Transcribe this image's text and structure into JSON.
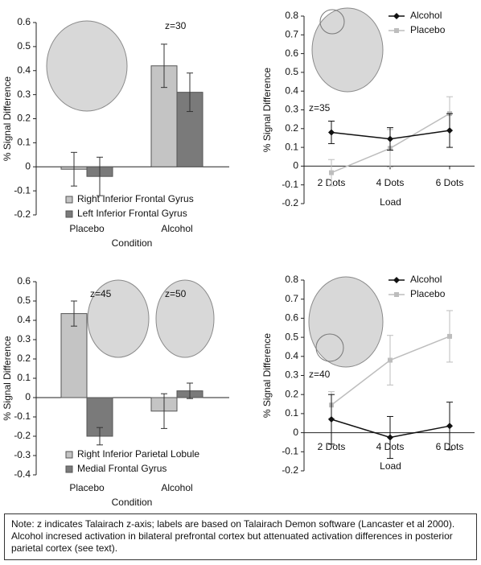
{
  "chart_data": [
    {
      "type": "bar",
      "ylabel": "% Signal Difference",
      "xlabel": "Condition",
      "categories": [
        "Placebo",
        "Alcohol"
      ],
      "series": [
        {
          "name": "Right Inferior Frontal Gyrus",
          "color": "#c4c4c4",
          "values": [
            -0.01,
            0.42
          ],
          "errors": [
            0.07,
            0.09
          ]
        },
        {
          "name": "Left Inferior Frontal Gyrus",
          "color": "#7a7a7a",
          "values": [
            -0.04,
            0.31
          ],
          "errors": [
            0.08,
            0.08
          ]
        }
      ],
      "ylim": [
        -0.2,
        0.6
      ],
      "yticks": [
        -0.2,
        -0.1,
        0,
        0.1,
        0.2,
        0.3,
        0.4,
        0.5,
        0.6
      ],
      "annotations": [
        "z=30"
      ],
      "legend": "lower-left"
    },
    {
      "type": "line",
      "ylabel": "% Signal Difference",
      "xlabel": "Load",
      "categories": [
        "2 Dots",
        "4 Dots",
        "6 Dots"
      ],
      "series": [
        {
          "name": "Alcohol",
          "color": "#111111",
          "marker": "diamond",
          "values": [
            0.18,
            0.145,
            0.19
          ],
          "errors": [
            0.06,
            0.06,
            0.09
          ]
        },
        {
          "name": "Placebo",
          "color": "#bdbdbd",
          "marker": "square",
          "values": [
            -0.035,
            0.095,
            0.28
          ],
          "errors": [
            0.07,
            0.1,
            0.09
          ]
        }
      ],
      "ylim": [
        -0.2,
        0.8
      ],
      "yticks": [
        -0.2,
        -0.1,
        0,
        0.1,
        0.2,
        0.3,
        0.4,
        0.5,
        0.6,
        0.7,
        0.8
      ],
      "annotations": [
        "z=35"
      ],
      "legend": "upper-right"
    },
    {
      "type": "bar",
      "ylabel": "% Signal Difference",
      "xlabel": "Condition",
      "categories": [
        "Placebo",
        "Alcohol"
      ],
      "series": [
        {
          "name": "Right Inferior Parietal Lobule",
          "color": "#c4c4c4",
          "values": [
            0.435,
            -0.07
          ],
          "errors": [
            0.065,
            0.09
          ]
        },
        {
          "name": "Medial Frontal Gyrus",
          "color": "#7a7a7a",
          "values": [
            -0.2,
            0.035
          ],
          "errors": [
            0.045,
            0.04
          ]
        }
      ],
      "ylim": [
        -0.4,
        0.6
      ],
      "yticks": [
        -0.4,
        -0.3,
        -0.2,
        -0.1,
        0,
        0.1,
        0.2,
        0.3,
        0.4,
        0.5,
        0.6
      ],
      "annotations": [
        "z=45",
        "z=50"
      ],
      "legend": "lower-left"
    },
    {
      "type": "line",
      "ylabel": "% Signal Difference",
      "xlabel": "Load",
      "categories": [
        "2 Dots",
        "4 Dots",
        "6 Dots"
      ],
      "series": [
        {
          "name": "Alcohol",
          "color": "#111111",
          "marker": "diamond",
          "values": [
            0.07,
            -0.025,
            0.035
          ],
          "errors": [
            0.13,
            0.11,
            0.125
          ]
        },
        {
          "name": "Placebo",
          "color": "#bdbdbd",
          "marker": "square",
          "values": [
            0.145,
            0.38,
            0.505
          ],
          "errors": [
            0.07,
            0.13,
            0.135
          ]
        }
      ],
      "ylim": [
        -0.2,
        0.8
      ],
      "yticks": [
        -0.2,
        -0.1,
        0,
        0.1,
        0.2,
        0.3,
        0.4,
        0.5,
        0.6,
        0.7,
        0.8
      ],
      "annotations": [
        "z=40"
      ],
      "legend": "upper-right"
    }
  ],
  "note": "Note: z indicates Talairach z-axis; labels are based on Talairach Demon software (Lancaster et al 2000). Alcohol incresed activation in bilateral prefrontal cortex but attenuated activation differences in posterior parietal cortex (see text)."
}
